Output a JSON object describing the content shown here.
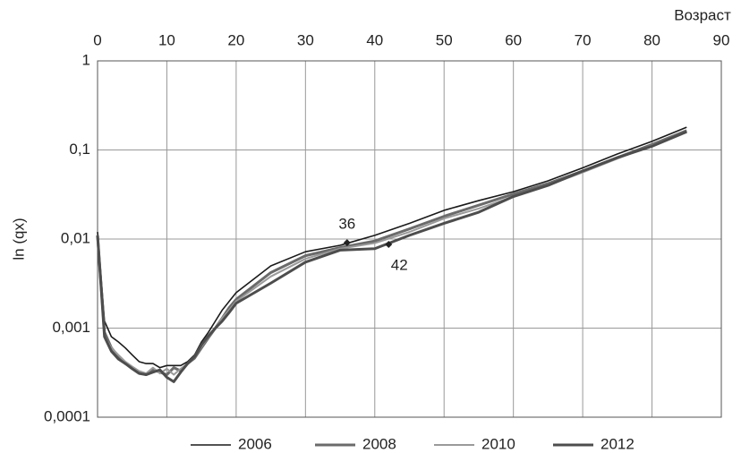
{
  "chart_data": {
    "type": "line",
    "x_label": "Возраст",
    "y_label": "ln (qx)",
    "x": [
      0,
      1,
      2,
      3,
      4,
      5,
      6,
      7,
      8,
      9,
      10,
      11,
      12,
      13,
      14,
      15,
      16,
      17,
      18,
      19,
      20,
      25,
      30,
      35,
      40,
      45,
      50,
      55,
      60,
      65,
      70,
      75,
      80,
      85
    ],
    "xlim": [
      0,
      90
    ],
    "xticks": [
      0,
      10,
      20,
      30,
      40,
      50,
      60,
      70,
      80,
      90
    ],
    "ylim": [
      0.0001,
      1
    ],
    "log_y": true,
    "grid": true,
    "legend": "bottom",
    "yticks": [
      {
        "value": 0.0001,
        "label": "0,0001"
      },
      {
        "value": 0.001,
        "label": "0,001"
      },
      {
        "value": 0.01,
        "label": "0,01"
      },
      {
        "value": 0.1,
        "label": "0,1"
      },
      1
    ],
    "series": [
      {
        "name": "2006",
        "color": "#1a1a1a",
        "values": [
          0.012,
          0.0012,
          0.0008,
          0.0007,
          0.0006,
          0.0005,
          0.00042,
          0.0004,
          0.0004,
          0.00036,
          0.00038,
          0.00038,
          0.00038,
          0.00042,
          0.0005,
          0.0007,
          0.0009,
          0.0012,
          0.0016,
          0.002,
          0.0025,
          0.005,
          0.0072,
          0.0085,
          0.011,
          0.015,
          0.021,
          0.027,
          0.034,
          0.045,
          0.063,
          0.09,
          0.125,
          0.18
        ]
      },
      {
        "name": "2008",
        "color": "#6b6b6b",
        "values": [
          0.011,
          0.0009,
          0.0006,
          0.00048,
          0.0004,
          0.00036,
          0.00032,
          0.0003,
          0.00034,
          0.00032,
          0.0003,
          0.00036,
          0.00033,
          0.0004,
          0.00046,
          0.0006,
          0.00078,
          0.001,
          0.0013,
          0.0017,
          0.0021,
          0.0042,
          0.0065,
          0.008,
          0.0095,
          0.013,
          0.018,
          0.024,
          0.032,
          0.042,
          0.058,
          0.082,
          0.115,
          0.165
        ]
      },
      {
        "name": "2010",
        "color": "#9a9a9a",
        "values": [
          0.011,
          0.0008,
          0.0006,
          0.0005,
          0.00042,
          0.00037,
          0.00033,
          0.00031,
          0.00036,
          0.00031,
          0.00035,
          0.0003,
          0.00035,
          0.0004,
          0.00048,
          0.00062,
          0.0008,
          0.001,
          0.0013,
          0.0016,
          0.002,
          0.0038,
          0.006,
          0.0078,
          0.009,
          0.012,
          0.017,
          0.022,
          0.03,
          0.04,
          0.056,
          0.08,
          0.112,
          0.16
        ]
      },
      {
        "name": "2012",
        "color": "#4d4d4d",
        "values": [
          0.011,
          0.0008,
          0.00055,
          0.00045,
          0.0004,
          0.00035,
          0.00031,
          0.0003,
          0.00032,
          0.00034,
          0.00028,
          0.00025,
          0.00032,
          0.0004,
          0.00048,
          0.00065,
          0.00082,
          0.001,
          0.0012,
          0.0015,
          0.0019,
          0.0032,
          0.0055,
          0.0075,
          0.0078,
          0.011,
          0.015,
          0.02,
          0.03,
          0.04,
          0.058,
          0.082,
          0.11,
          0.16
        ]
      }
    ],
    "annotations": [
      {
        "label": "36",
        "x": 36,
        "y": 0.0091
      },
      {
        "label": "42",
        "x": 42,
        "y": 0.0087
      }
    ]
  }
}
